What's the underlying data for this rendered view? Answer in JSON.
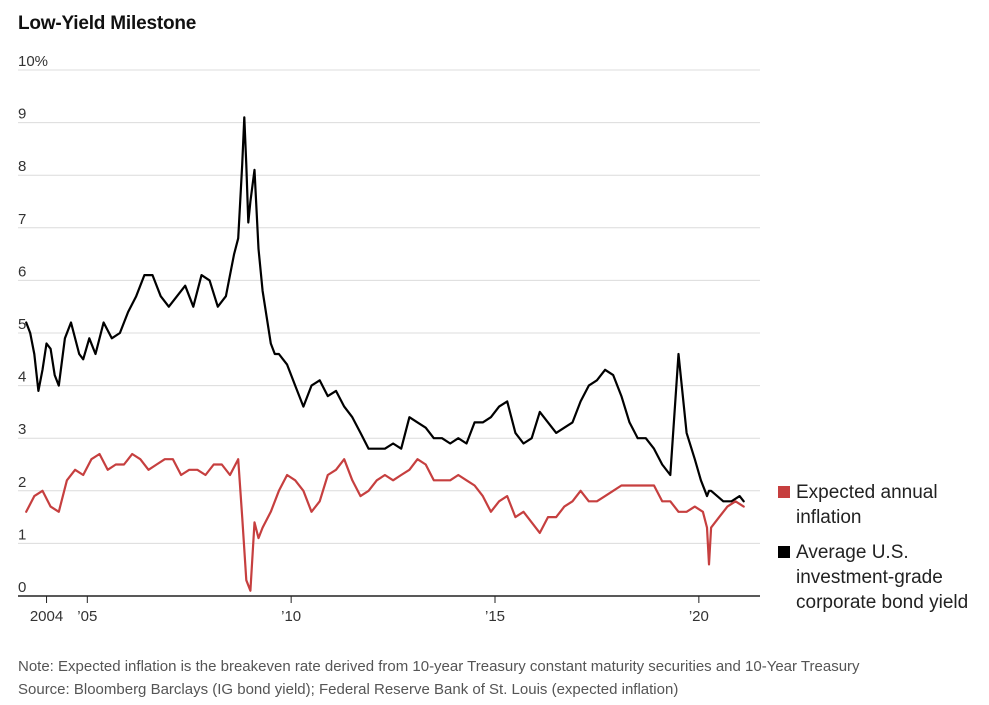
{
  "title": "Low-Yield Milestone",
  "colors": {
    "inflation": "#c63f3f",
    "bond": "#000000",
    "grid": "#dcdcdc",
    "axis": "#222222"
  },
  "chart_data": {
    "type": "line",
    "title": "Low-Yield Milestone",
    "x_range": [
      2003.3,
      2021.5
    ],
    "ylim": [
      0,
      10
    ],
    "y_ticks": [
      0,
      1,
      2,
      3,
      4,
      5,
      6,
      7,
      8,
      9,
      10
    ],
    "y_tick_labels": [
      "0",
      "1",
      "2",
      "3",
      "4",
      "5",
      "6",
      "7",
      "8",
      "9",
      "10%"
    ],
    "x_ticks": [
      2004,
      2005,
      2010,
      2015,
      2020
    ],
    "x_tick_labels": [
      "2004",
      "’05",
      "’10",
      "’15",
      "’20"
    ],
    "grid": "horizontal",
    "legend_position": "right",
    "series": [
      {
        "name": "Expected annual inflation",
        "color": "#c63f3f",
        "x": [
          2003.5,
          2003.7,
          2003.9,
          2004.1,
          2004.3,
          2004.5,
          2004.7,
          2004.9,
          2005.1,
          2005.3,
          2005.5,
          2005.7,
          2005.9,
          2006.1,
          2006.3,
          2006.5,
          2006.7,
          2006.9,
          2007.1,
          2007.3,
          2007.5,
          2007.7,
          2007.9,
          2008.1,
          2008.3,
          2008.5,
          2008.7,
          2008.8,
          2008.9,
          2009.0,
          2009.1,
          2009.2,
          2009.3,
          2009.5,
          2009.7,
          2009.9,
          2010.1,
          2010.3,
          2010.5,
          2010.7,
          2010.9,
          2011.1,
          2011.3,
          2011.5,
          2011.7,
          2011.9,
          2012.1,
          2012.3,
          2012.5,
          2012.7,
          2012.9,
          2013.1,
          2013.3,
          2013.5,
          2013.7,
          2013.9,
          2014.1,
          2014.3,
          2014.5,
          2014.7,
          2014.9,
          2015.1,
          2015.3,
          2015.5,
          2015.7,
          2015.9,
          2016.1,
          2016.3,
          2016.5,
          2016.7,
          2016.9,
          2017.1,
          2017.3,
          2017.5,
          2017.7,
          2017.9,
          2018.1,
          2018.3,
          2018.5,
          2018.7,
          2018.9,
          2019.1,
          2019.3,
          2019.5,
          2019.7,
          2019.9,
          2020.1,
          2020.2,
          2020.25,
          2020.3,
          2020.5,
          2020.7,
          2020.9,
          2021.1
        ],
        "y": [
          1.6,
          1.9,
          2.0,
          1.7,
          1.6,
          2.2,
          2.4,
          2.3,
          2.6,
          2.7,
          2.4,
          2.5,
          2.5,
          2.7,
          2.6,
          2.4,
          2.5,
          2.6,
          2.6,
          2.3,
          2.4,
          2.4,
          2.3,
          2.5,
          2.5,
          2.3,
          2.6,
          1.5,
          0.3,
          0.1,
          1.4,
          1.1,
          1.3,
          1.6,
          2.0,
          2.3,
          2.2,
          2.0,
          1.6,
          1.8,
          2.3,
          2.4,
          2.6,
          2.2,
          1.9,
          2.0,
          2.2,
          2.3,
          2.2,
          2.3,
          2.4,
          2.6,
          2.5,
          2.2,
          2.2,
          2.2,
          2.3,
          2.2,
          2.1,
          1.9,
          1.6,
          1.8,
          1.9,
          1.5,
          1.6,
          1.4,
          1.2,
          1.5,
          1.5,
          1.7,
          1.8,
          2.0,
          1.8,
          1.8,
          1.9,
          2.0,
          2.1,
          2.1,
          2.1,
          2.1,
          2.1,
          1.8,
          1.8,
          1.6,
          1.6,
          1.7,
          1.6,
          1.3,
          0.6,
          1.3,
          1.5,
          1.7,
          1.8,
          1.7
        ]
      },
      {
        "name": "Average U.S. investment-grade corporate bond yield",
        "color": "#000000",
        "x": [
          2003.5,
          2003.6,
          2003.7,
          2003.8,
          2003.9,
          2004.0,
          2004.1,
          2004.2,
          2004.3,
          2004.45,
          2004.6,
          2004.8,
          2004.9,
          2005.05,
          2005.2,
          2005.4,
          2005.6,
          2005.8,
          2006.0,
          2006.2,
          2006.4,
          2006.6,
          2006.8,
          2007.0,
          2007.2,
          2007.4,
          2007.6,
          2007.8,
          2008.0,
          2008.2,
          2008.4,
          2008.5,
          2008.6,
          2008.7,
          2008.8,
          2008.85,
          2008.9,
          2008.95,
          2009.0,
          2009.1,
          2009.2,
          2009.3,
          2009.4,
          2009.5,
          2009.6,
          2009.7,
          2009.8,
          2009.9,
          2010.1,
          2010.3,
          2010.5,
          2010.7,
          2010.9,
          2011.1,
          2011.3,
          2011.5,
          2011.7,
          2011.9,
          2012.1,
          2012.3,
          2012.5,
          2012.7,
          2012.9,
          2013.1,
          2013.3,
          2013.5,
          2013.7,
          2013.9,
          2014.1,
          2014.3,
          2014.5,
          2014.7,
          2014.9,
          2015.1,
          2015.3,
          2015.5,
          2015.7,
          2015.9,
          2016.1,
          2016.3,
          2016.5,
          2016.7,
          2016.9,
          2017.1,
          2017.3,
          2017.5,
          2017.7,
          2017.9,
          2018.1,
          2018.3,
          2018.5,
          2018.7,
          2018.9,
          2019.1,
          2019.3,
          2019.5,
          2019.7,
          2019.9,
          2020.05,
          2020.15,
          2020.2,
          2020.25,
          2020.3,
          2020.45,
          2020.6,
          2020.8,
          2021.0,
          2021.1
        ],
        "y": [
          5.2,
          5.0,
          4.6,
          3.9,
          4.3,
          4.8,
          4.7,
          4.2,
          4.0,
          4.9,
          5.2,
          4.6,
          4.5,
          4.9,
          4.6,
          5.2,
          4.9,
          5.0,
          5.4,
          5.7,
          6.1,
          6.1,
          5.7,
          5.5,
          5.7,
          5.9,
          5.5,
          6.1,
          6.0,
          5.5,
          5.7,
          6.1,
          6.5,
          6.8,
          8.2,
          9.1,
          8.2,
          7.1,
          7.5,
          8.1,
          6.6,
          5.8,
          5.3,
          4.8,
          4.6,
          4.6,
          4.5,
          4.4,
          4.0,
          3.6,
          4.0,
          4.1,
          3.8,
          3.9,
          3.6,
          3.4,
          3.1,
          2.8,
          2.8,
          2.8,
          2.9,
          2.8,
          3.4,
          3.3,
          3.2,
          3.0,
          3.0,
          2.9,
          3.0,
          2.9,
          3.3,
          3.3,
          3.4,
          3.6,
          3.7,
          3.1,
          2.9,
          3.0,
          3.5,
          3.3,
          3.1,
          3.2,
          3.3,
          3.7,
          4.0,
          4.1,
          4.3,
          4.2,
          3.8,
          3.3,
          3.0,
          3.0,
          2.8,
          2.5,
          2.3,
          4.6,
          3.1,
          2.6,
          2.2,
          2.0,
          1.9,
          2.0,
          2.0,
          1.9,
          1.8,
          1.8,
          1.9,
          1.8
        ]
      }
    ]
  },
  "legend": {
    "inflation_label": "Expected annual inflation",
    "bond_label": "Average U.S. investment-grade corporate bond yield"
  },
  "note": {
    "line1": "Note: Expected inflation is the breakeven rate derived from 10-year Treasury constant maturity securities and 10-Year Treasury",
    "line2": "Source: Bloomberg Barclays (IG bond yield); Federal Reserve Bank of St. Louis (expected inflation)"
  }
}
